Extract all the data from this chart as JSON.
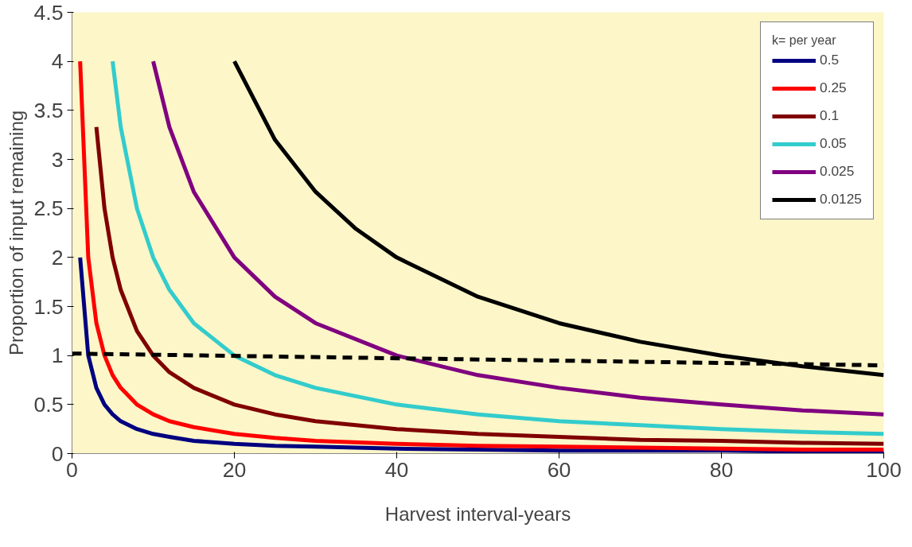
{
  "chart_data": {
    "type": "line",
    "xlabel": "Harvest interval-years",
    "ylabel": "Proportion of input remaining",
    "legend_title": "k= per year",
    "legend": "top right",
    "grid": false,
    "marker": "none",
    "line_style": "solid",
    "xlim": [
      0,
      100
    ],
    "xticks": [
      0,
      20,
      40,
      60,
      80,
      100
    ],
    "ylim": [
      0,
      4.5
    ],
    "yticks": [
      0,
      0.5,
      1,
      1.5,
      2,
      2.5,
      3,
      3.5,
      4,
      4.5
    ],
    "series": [
      {
        "name": "0.5",
        "color": "#000080",
        "x": [
          1,
          2,
          3,
          4,
          5,
          6,
          8,
          10,
          12,
          15,
          20,
          25,
          30,
          40,
          50,
          60,
          70,
          80,
          90,
          100
        ],
        "values": [
          2,
          1,
          0.67,
          0.5,
          0.4,
          0.33,
          0.25,
          0.2,
          0.17,
          0.13,
          0.1,
          0.08,
          0.07,
          0.05,
          0.04,
          0.03,
          0.03,
          0.03,
          0.02,
          0.02
        ]
      },
      {
        "name": "0.25",
        "color": "#ff0000",
        "x": [
          1,
          2,
          3,
          4,
          5,
          6,
          8,
          10,
          12,
          15,
          20,
          25,
          30,
          40,
          50,
          60,
          70,
          80,
          90,
          100
        ],
        "values": [
          4,
          2,
          1.33,
          1,
          0.8,
          0.67,
          0.5,
          0.4,
          0.33,
          0.27,
          0.2,
          0.16,
          0.13,
          0.1,
          0.08,
          0.07,
          0.06,
          0.05,
          0.04,
          0.04
        ]
      },
      {
        "name": "0.1",
        "color": "#800000",
        "x": [
          3,
          4,
          5,
          6,
          8,
          10,
          12,
          15,
          20,
          25,
          30,
          40,
          50,
          60,
          70,
          80,
          90,
          100
        ],
        "values": [
          3.33,
          2.5,
          2,
          1.67,
          1.25,
          1,
          0.83,
          0.67,
          0.5,
          0.4,
          0.33,
          0.25,
          0.2,
          0.17,
          0.14,
          0.13,
          0.11,
          0.1
        ]
      },
      {
        "name": "0.05",
        "color": "#33cccc",
        "x": [
          5,
          6,
          8,
          10,
          12,
          15,
          20,
          25,
          30,
          40,
          50,
          60,
          70,
          80,
          90,
          100
        ],
        "values": [
          4,
          3.33,
          2.5,
          2,
          1.67,
          1.33,
          1,
          0.8,
          0.67,
          0.5,
          0.4,
          0.33,
          0.29,
          0.25,
          0.22,
          0.2
        ]
      },
      {
        "name": "0.025",
        "color": "#800080",
        "x": [
          10,
          12,
          15,
          20,
          25,
          30,
          40,
          50,
          60,
          70,
          80,
          90,
          100
        ],
        "values": [
          4,
          3.33,
          2.67,
          2,
          1.6,
          1.33,
          1,
          0.8,
          0.67,
          0.57,
          0.5,
          0.44,
          0.4
        ]
      },
      {
        "name": "0.0125",
        "color": "#000000",
        "x": [
          20,
          25,
          30,
          35,
          40,
          50,
          60,
          70,
          80,
          90,
          100
        ],
        "values": [
          4,
          3.2,
          2.67,
          2.29,
          2,
          1.6,
          1.33,
          1.14,
          1,
          0.89,
          0.8
        ]
      },
      {
        "color": "#000000",
        "line_style": "dashed",
        "x": [
          0,
          100
        ],
        "values": [
          1.02,
          0.9
        ]
      }
    ]
  }
}
